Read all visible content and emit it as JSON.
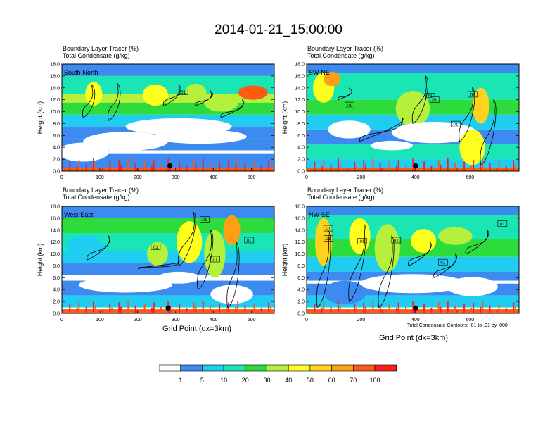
{
  "title": "2014-01-21_15:00:00",
  "field_label_1": "Boundary Layer Tracer   (%)",
  "field_label_2": "Total Condensate   (g/kg)",
  "ylabel": "Height (km)",
  "xlabel": "Grid Point (dx=3km)",
  "contour_note": "Total Condensate Contours: .01 to .01 by .000",
  "contour_label": ".01",
  "colorbar": {
    "colors": [
      "#ffffff",
      "#3d8af0",
      "#1ecdf0",
      "#19e6b4",
      "#2ddc3c",
      "#b4f03c",
      "#ffff1e",
      "#ffd21e",
      "#ffa014",
      "#ff5a14",
      "#ff1e1e"
    ],
    "labels": [
      "1",
      "5",
      "10",
      "20",
      "30",
      "40",
      "50",
      "60",
      "70",
      "100"
    ]
  },
  "chart_data": [
    {
      "type": "heatmap",
      "name": "South-North",
      "xlim": [
        0,
        560
      ],
      "xticks": [
        0,
        100,
        200,
        300,
        400,
        500
      ],
      "ylim": [
        0,
        18
      ],
      "yticks": [
        "0.0",
        "2.0",
        "4.0",
        "6.0",
        "8.0",
        "10.0",
        "12.0",
        "14.0",
        "16.0",
        "18.0"
      ],
      "marker_x": 285,
      "contour_labels": [
        ".01"
      ]
    },
    {
      "type": "heatmap",
      "name": "SW-NE",
      "xlim": [
        0,
        780
      ],
      "xticks": [
        0,
        200,
        400,
        600
      ],
      "ylim": [
        0,
        18
      ],
      "yticks": [
        "0.0",
        "2.0",
        "4.0",
        "6.0",
        "8.0",
        "10.0",
        "12.0",
        "14.0",
        "16.0",
        "18.0"
      ],
      "marker_x": 400,
      "contour_labels": [
        ".01",
        ".01",
        ".01",
        ".01",
        ".01"
      ]
    },
    {
      "type": "heatmap",
      "name": "West-East",
      "xlim": [
        0,
        560
      ],
      "xticks": [
        0,
        100,
        200,
        300,
        400,
        500
      ],
      "ylim": [
        0,
        18
      ],
      "yticks": [
        "0.0",
        "2.0",
        "4.0",
        "6.0",
        "8.0",
        "10.0",
        "12.0",
        "14.0",
        "16.0",
        "18.0"
      ],
      "marker_x": 280,
      "contour_labels": [
        ".01",
        ".01",
        ".01",
        ".01"
      ]
    },
    {
      "type": "heatmap",
      "name": "NW-SE",
      "xlim": [
        0,
        780
      ],
      "xticks": [
        0,
        200,
        400,
        600
      ],
      "ylim": [
        0,
        18
      ],
      "yticks": [
        "0.0",
        "2.0",
        "4.0",
        "6.0",
        "8.0",
        "10.0",
        "12.0",
        "14.0",
        "16.0",
        "18.0"
      ],
      "marker_x": 400,
      "contour_labels": [
        ".01",
        ".01",
        ".01",
        ".01",
        ".01",
        ".01"
      ]
    }
  ]
}
